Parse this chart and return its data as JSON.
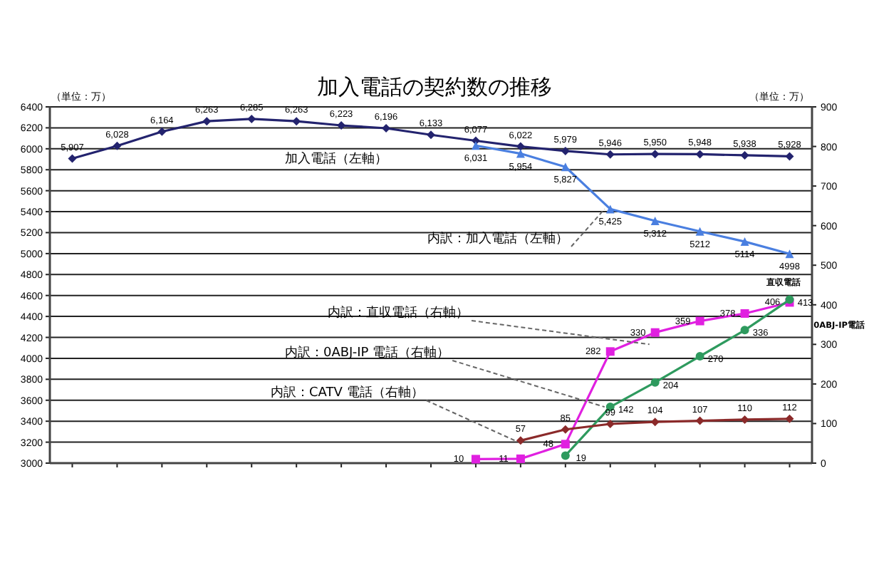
{
  "chart_data": {
    "type": "line",
    "title": "加入電話の契約数の推移",
    "ylabel": "（単位：万）",
    "y2label": "（単位：万）",
    "categories": [
      null,
      null,
      null,
      null,
      null,
      null,
      null,
      null,
      null,
      null,
      null,
      null,
      null,
      null,
      null,
      null,
      null
    ],
    "ylim": [
      3000,
      6400
    ],
    "yticks": [
      3000,
      3200,
      3400,
      3600,
      3800,
      4000,
      4200,
      4400,
      4600,
      4800,
      5000,
      5200,
      5400,
      5600,
      5800,
      6000,
      6200,
      6400
    ],
    "y2lim": [
      0,
      900
    ],
    "y2ticks": [
      0,
      100,
      200,
      300,
      400,
      500,
      600,
      700,
      800,
      900
    ],
    "grid": "y",
    "line_style": "solid",
    "series": [
      {
        "color": "#23236e",
        "marker": "diamond",
        "values": [
          5907,
          6028,
          6164,
          6263,
          6285,
          6263,
          6223,
          6196,
          6133,
          6077,
          6022,
          5979,
          5946,
          5950,
          5948,
          5938,
          5928
        ],
        "value_labels": [
          "5,907",
          "6,028",
          "6,164",
          "6,263",
          "6,285",
          "6,263",
          "6,223",
          "6,196",
          "6,133",
          "6,077",
          "6,022",
          "5,979",
          "5,946",
          "5,950",
          "5,948",
          "5,938",
          "5,928"
        ]
      },
      {
        "color": "#4a7fe0",
        "marker": "triangle",
        "values": [
          null,
          null,
          null,
          null,
          null,
          null,
          null,
          null,
          null,
          6031,
          5954,
          5827,
          5425,
          5312,
          5212,
          5114,
          4998
        ],
        "value_labels": [
          null,
          null,
          null,
          null,
          null,
          null,
          null,
          null,
          null,
          "6,031",
          "5,954",
          "5,827",
          "5,425",
          "5,312",
          "5212",
          "5114",
          "4998"
        ]
      },
      {
        "color": "#e020e0",
        "marker": "square",
        "axis": "y2",
        "values": [
          null,
          null,
          null,
          null,
          null,
          null,
          null,
          null,
          null,
          10,
          11,
          48,
          282,
          330,
          359,
          378,
          406
        ],
        "value_labels": [
          null,
          null,
          null,
          null,
          null,
          null,
          null,
          null,
          null,
          "10",
          "11",
          "48",
          "282",
          "330",
          "359",
          "378",
          "406"
        ]
      },
      {
        "color": "#2e9a5e",
        "marker": "circle",
        "axis": "y2",
        "values": [
          null,
          null,
          null,
          null,
          null,
          null,
          null,
          null,
          null,
          null,
          null,
          19,
          142,
          204,
          270,
          336,
          413
        ],
        "value_labels": [
          null,
          null,
          null,
          null,
          null,
          null,
          null,
          null,
          null,
          null,
          null,
          "19",
          "142",
          "204",
          "270",
          "336",
          "413"
        ]
      },
      {
        "color": "#8b2a2a",
        "marker": "diamond",
        "axis": "y2",
        "values": [
          null,
          null,
          null,
          null,
          null,
          null,
          null,
          null,
          null,
          null,
          57,
          85,
          99,
          104,
          107,
          110,
          112
        ],
        "value_labels": [
          null,
          null,
          null,
          null,
          null,
          null,
          null,
          null,
          null,
          null,
          "57",
          "85",
          "99",
          "104",
          "107",
          "110",
          "112"
        ]
      }
    ],
    "annotations": [
      "加入電話（左軸）",
      "内訳：加入電話（左軸）",
      "内訳：直収電話（右軸）",
      "内訳：0ABJ-IP 電話（右軸）",
      "内訳：CATV 電話（右軸）",
      "直収電話",
      "0ABJ-IP電話"
    ]
  }
}
